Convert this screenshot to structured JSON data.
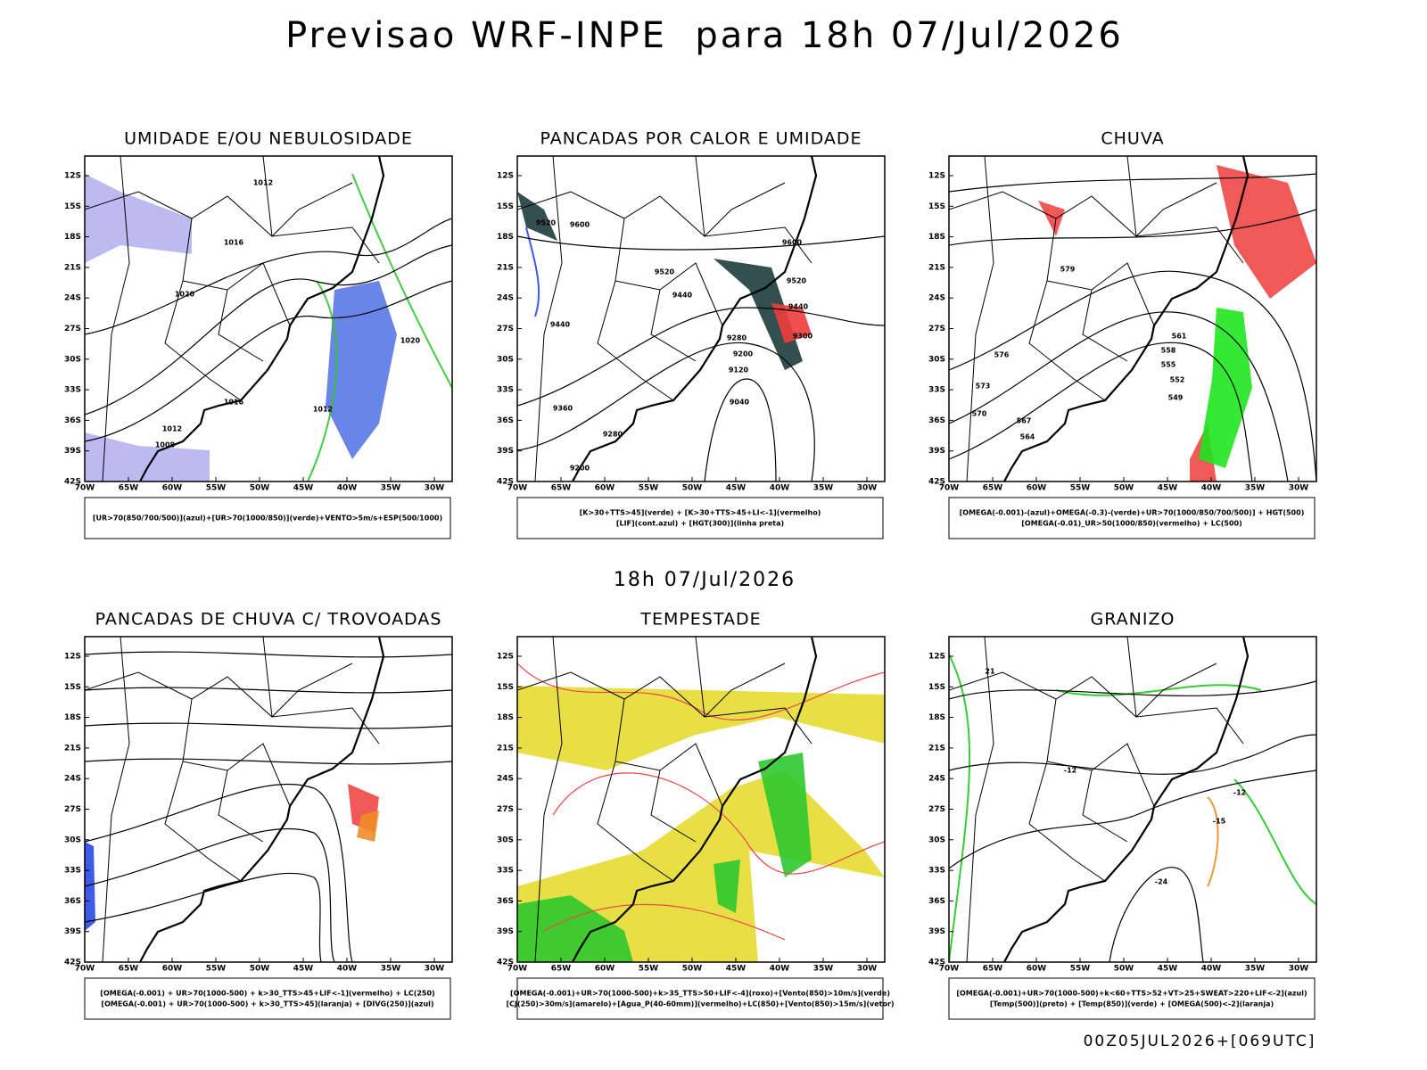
{
  "header": {
    "title": "Previsao WRF-INPE  para 18h 07/Jul/2026",
    "subtitle": "18h 07/Jul/2026",
    "run": "00Z05JUL2026+[069UTC]"
  },
  "axes": {
    "lat_labels": [
      "12S",
      "15S",
      "18S",
      "21S",
      "24S",
      "27S",
      "30S",
      "33S",
      "36S",
      "39S",
      "42S"
    ],
    "lon_labels": [
      "70W",
      "65W",
      "60W",
      "55W",
      "50W",
      "45W",
      "40W",
      "35W",
      "30W"
    ]
  },
  "panels": [
    {
      "title": "UMIDADE E/OU NEBULOSIDADE",
      "legend": [
        "[UR>70(850/700/500)](azul)+[UR>70(1000/850)](verde)+VENTO>5m/s+ESP(500/1000)"
      ],
      "contour_labels": [
        "1012",
        "1016",
        "1020",
        "1012",
        "1008",
        "1016",
        "1012",
        "1020"
      ]
    },
    {
      "title": "PANCADAS POR CALOR E UMIDADE",
      "legend": [
        "[K>30+TTS>45](verde) + [K>30+TTS>45+LI<-1](vermelho)",
        "[LIF](cont.azul) + [HGT(300)](linha preta)"
      ],
      "contour_labels": [
        "9600",
        "9520",
        "9520",
        "9440",
        "9440",
        "9360",
        "9280",
        "9200",
        "9120",
        "9040",
        "9280",
        "9200",
        "9600",
        "9520",
        "9440",
        "9300"
      ]
    },
    {
      "title": "CHUVA",
      "legend": [
        "[OMEGA(-0.001)-(azul)+OMEGA(-0.3)-(verde)+UR>70(1000/850/700/500)] + HGT(500)",
        "[OMEGA(-0.01)_UR>50(1000/850)(vermelho) + LC(500)"
      ],
      "contour_labels": [
        "576",
        "573",
        "570",
        "567",
        "564",
        "561",
        "558",
        "555",
        "552",
        "549",
        "579"
      ]
    },
    {
      "title": "PANCADAS DE CHUVA C/ TROVOADAS",
      "legend": [
        "[OMEGA(-0.001) + UR>70(1000-500) + k>30_TTS>45+LIF<-1](vermelho) + LC(250)",
        "[OMEGA(-0.001) + UR>70(1000-500) + k>30_TTS>45](laranja) + [DIVG(250)](azul)"
      ],
      "contour_labels": []
    },
    {
      "title": "TEMPESTADE",
      "legend": [
        "[OMEGA(-0.001)+UR>70(1000-500)+k>35_TTS>50+LIF<-4](roxo)+[Vento(850)>10m/s](verde)",
        "[CJ(250)>30m/s](amarelo)+[Agua_P(40-60mm)](vermelho)+LC(850)+[Vento(850)>15m/s](vetor)"
      ],
      "contour_labels": []
    },
    {
      "title": "GRANIZO",
      "legend": [
        "[OMEGA(-0.001)+UR>70(1000-500)+k<60+TTS>52+VT>25+SWEAT>220+LIF<-2](azul)",
        "[Temp(500)](preto) + [Temp(850)](verde) + [OMEGA(500)<-2](laranja)"
      ],
      "contour_labels": [
        "-12",
        "-15",
        "-24",
        "-12",
        "21"
      ]
    }
  ]
}
